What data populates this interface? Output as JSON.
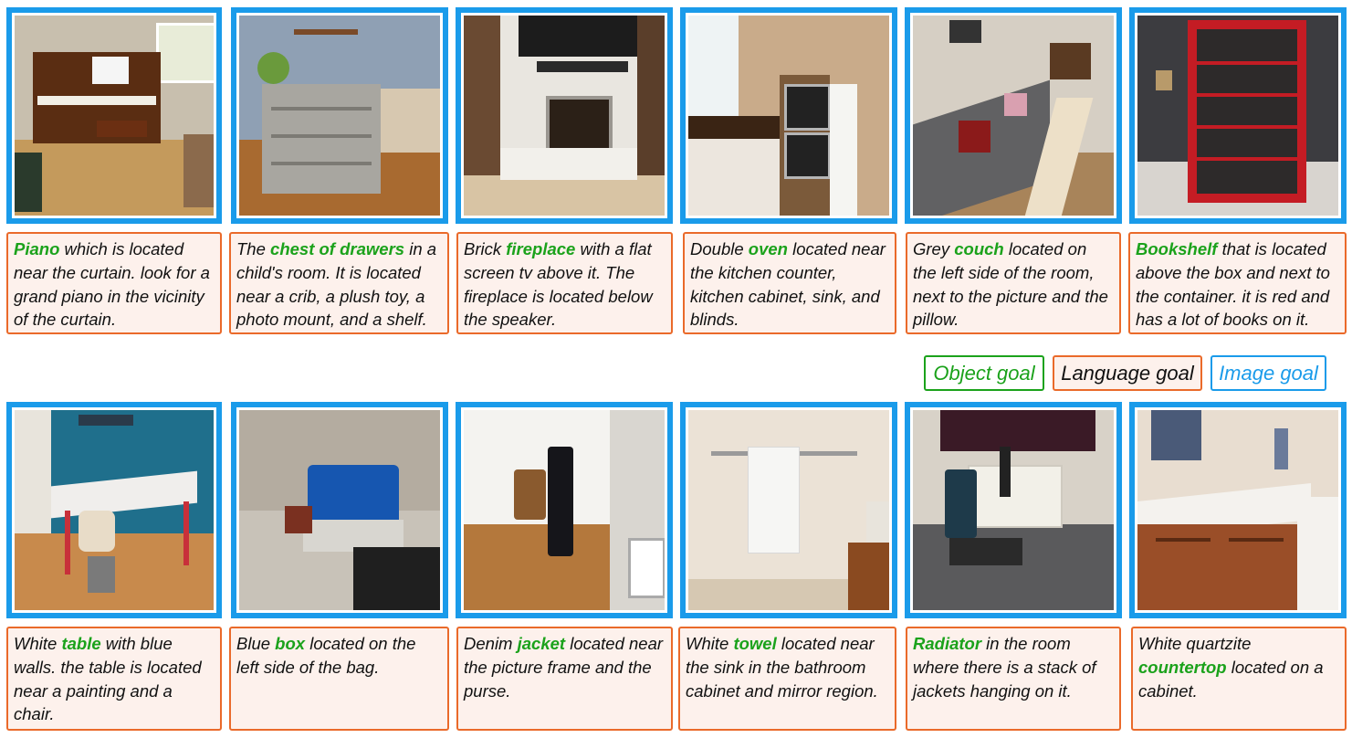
{
  "legend": {
    "object_goal": "Object goal",
    "language_goal": "Language goal",
    "image_goal": "Image goal"
  },
  "colors": {
    "image_goal_border": "#1a9bea",
    "language_goal_border": "#ea6a2a",
    "object_goal_text": "#1ba21b",
    "caption_background": "#fdf1ec"
  },
  "cards": [
    {
      "scene": "piano-scene",
      "pre": "",
      "object": "Piano",
      "post": " which is located near the curtain. look for a grand piano in the vicinity of the curtain."
    },
    {
      "scene": "chest-of-drawers-scene",
      "pre": "The ",
      "object": "chest of drawers",
      "post": " in a child's room. It is located near a crib, a plush toy, a photo mount, and a shelf."
    },
    {
      "scene": "fireplace-scene",
      "pre": "Brick ",
      "object": "fireplace",
      "post": " with a flat screen tv above it. The fireplace is located below the speaker."
    },
    {
      "scene": "oven-scene",
      "pre": "Double ",
      "object": "oven",
      "post": " located near the kitchen counter, kitchen cabinet, sink, and blinds."
    },
    {
      "scene": "couch-scene",
      "pre": "Grey ",
      "object": "couch",
      "post": " located on the left side of the room, next to the picture and the pillow."
    },
    {
      "scene": "bookshelf-scene",
      "pre": "",
      "object": "Bookshelf",
      "post": " that is located above the box and next to the container. it is red and has a lot of books on it."
    },
    {
      "scene": "table-scene",
      "pre": "White ",
      "object": "table",
      "post": " with blue walls. the table is located near a painting and a chair."
    },
    {
      "scene": "box-scene",
      "pre": "Blue ",
      "object": "box",
      "post": " located on the left side of the bag."
    },
    {
      "scene": "jacket-scene",
      "pre": "Denim ",
      "object": "jacket",
      "post": " located near the picture frame and the purse."
    },
    {
      "scene": "towel-scene",
      "pre": "White ",
      "object": "towel",
      "post": " located near the sink in the bathroom cabinet and mirror region."
    },
    {
      "scene": "radiator-scene",
      "pre": "",
      "object": "Radiator",
      "post": " in the room where there is a stack of jackets hanging on it."
    },
    {
      "scene": "countertop-scene",
      "pre": "White quartzite ",
      "object": "countertop",
      "post": " located on a cabinet."
    }
  ]
}
